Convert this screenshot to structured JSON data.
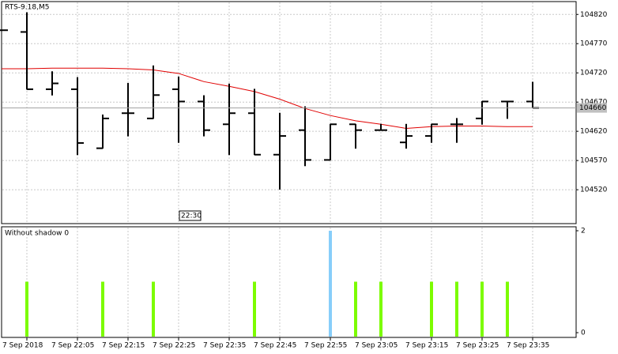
{
  "chart_data": [
    {
      "type": "ohlc",
      "title": "RTS-9.18,M5",
      "categories": [
        null,
        "7 Sep 2018",
        null,
        "7 Sep 22:05",
        null,
        "7 Sep 22:15",
        null,
        "7 Sep 22:25",
        null,
        "7 Sep 22:35",
        null,
        "7 Sep 22:45",
        null,
        "7 Sep 22:55",
        null,
        "7 Sep 23:05",
        null,
        "7 Sep 23:15",
        null,
        "7 Sep 23:25",
        null,
        "7 Sep 23:35"
      ],
      "open": [
        104793,
        104790,
        104692,
        104692,
        104591,
        104651,
        104642,
        104692,
        104671,
        104632,
        104651,
        104580,
        104622,
        104571,
        104632,
        104622,
        104601,
        104612,
        104632,
        104642,
        104671,
        104671
      ],
      "high": [
        104793,
        104823,
        104722,
        104712,
        104648,
        104702,
        104732,
        104713,
        104681,
        104701,
        104692,
        104651,
        104662,
        104632,
        104632,
        104632,
        104632,
        104632,
        104642,
        104671,
        104671,
        104704
      ],
      "low": [
        104793,
        104692,
        104682,
        104580,
        104591,
        104612,
        104642,
        104601,
        104612,
        104580,
        104580,
        104521,
        104561,
        104571,
        104591,
        104622,
        104591,
        104601,
        104601,
        104632,
        104642,
        104660
      ],
      "close": [
        104793,
        104692,
        104702,
        104600,
        104642,
        104651,
        104682,
        104671,
        104622,
        104651,
        104580,
        104612,
        104571,
        104632,
        104622,
        104622,
        104612,
        104632,
        104632,
        104671,
        104671,
        104660
      ],
      "color": "#000000",
      "series": [
        {
          "name": "MA",
          "color": "#e00000",
          "values": [
            104727,
            104727,
            104728,
            104728,
            104728,
            104727,
            104725,
            104719,
            104705,
            104697,
            104688,
            104675,
            104659,
            104647,
            104638,
            104632,
            104625,
            104628,
            104629,
            104629,
            104628,
            104628
          ]
        }
      ],
      "ylim": [
        104462,
        104842
      ],
      "yticks": [
        104520,
        104570,
        104620,
        104670,
        104720,
        104770,
        104820
      ],
      "last_price": 104660,
      "cursor_time": "22:30",
      "grid": true
    },
    {
      "type": "bar",
      "title": "Without shadow 0",
      "values": [
        0,
        1,
        0,
        0,
        1,
        0,
        1,
        0,
        0,
        0,
        1,
        0,
        0,
        2,
        1,
        1,
        0,
        1,
        1,
        1,
        1,
        0
      ],
      "colors": {
        "1": "#7cfc00",
        "2": "#87cefa"
      },
      "ylim": [
        0,
        2
      ],
      "yticks": [
        0,
        2
      ]
    }
  ]
}
